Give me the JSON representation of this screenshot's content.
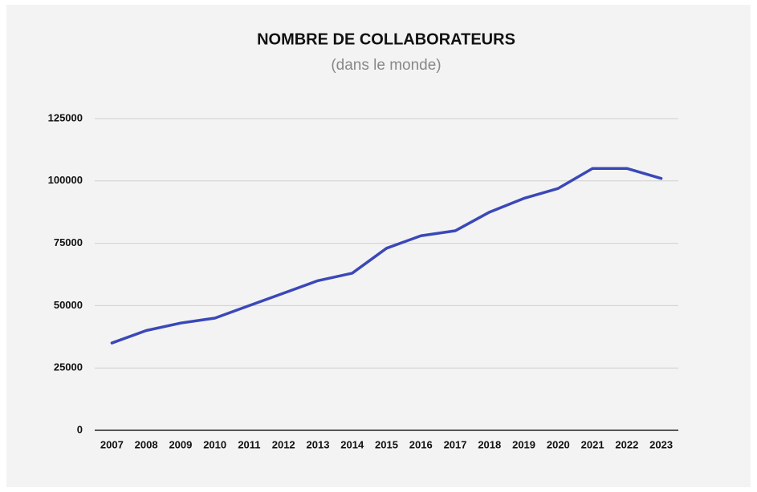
{
  "chart_data": {
    "type": "line",
    "title": "NOMBRE DE COLLABORATEURS",
    "subtitle": "(dans le monde)",
    "categories": [
      "2007",
      "2008",
      "2009",
      "2010",
      "2011",
      "2012",
      "2013",
      "2014",
      "2015",
      "2016",
      "2017",
      "2018",
      "2019",
      "2020",
      "2021",
      "2022",
      "2023"
    ],
    "values": [
      35000,
      40000,
      43000,
      45000,
      50000,
      55000,
      60000,
      63000,
      73000,
      78000,
      80000,
      87500,
      93000,
      97000,
      105000,
      105000,
      101000
    ],
    "color": "#3a48b8",
    "ylim": [
      0,
      125000
    ],
    "yticks": [
      0,
      25000,
      50000,
      75000,
      100000,
      125000
    ],
    "grid": true
  }
}
